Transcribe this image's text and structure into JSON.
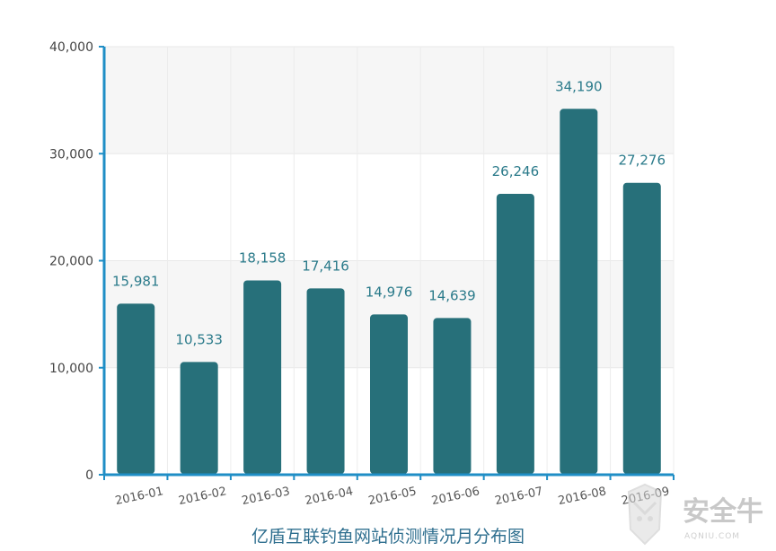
{
  "chart_data": {
    "type": "bar",
    "title": "亿盾互联钓鱼网站侦测情况月分布图",
    "categories": [
      "2016-01",
      "2016-02",
      "2016-03",
      "2016-04",
      "2016-05",
      "2016-06",
      "2016-07",
      "2016-08",
      "2016-09"
    ],
    "values": [
      15981,
      10533,
      18158,
      17416,
      14976,
      14639,
      26246,
      34190,
      27276
    ],
    "value_labels": [
      "15,981",
      "10,533",
      "18,158",
      "17,416",
      "14,976",
      "14,639",
      "26,246",
      "34,190",
      "27,276"
    ],
    "y_ticks": [
      0,
      10000,
      20000,
      30000,
      40000
    ],
    "y_tick_labels": [
      "0",
      "10,000",
      "20,000",
      "30,000",
      "40,000"
    ],
    "ylim": [
      0,
      40000
    ],
    "xlabel": "",
    "ylabel": "",
    "grid": true,
    "bar_color": "#27707a",
    "axis_color": "#1f8ec6",
    "label_color": "#2a7a8a"
  },
  "watermark": {
    "text": "安全牛",
    "subtext": "AQNIU.COM"
  }
}
